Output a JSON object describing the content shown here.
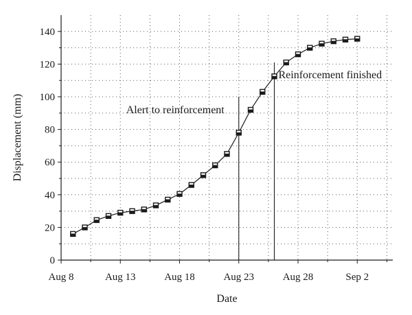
{
  "chart_data": {
    "type": "line",
    "title": "",
    "xlabel": "Date",
    "ylabel": "Displacement (mm)",
    "x_ticks": [
      {
        "day": 0,
        "label": "Aug 8"
      },
      {
        "day": 5,
        "label": "Aug 13"
      },
      {
        "day": 10,
        "label": "Aug 18"
      },
      {
        "day": 15,
        "label": "Aug 23"
      },
      {
        "day": 20,
        "label": "Aug 28"
      },
      {
        "day": 25,
        "label": "Sep 2"
      }
    ],
    "y_ticks": [
      0,
      20,
      40,
      60,
      80,
      100,
      120,
      140
    ],
    "xlim": [
      0,
      28
    ],
    "ylim": [
      0,
      150
    ],
    "grid": true,
    "x": [
      1,
      2,
      3,
      4,
      5,
      6,
      7,
      8,
      9,
      10,
      11,
      12,
      13,
      14,
      15,
      16,
      17,
      18,
      19,
      20,
      21,
      22,
      23,
      24,
      25
    ],
    "values": [
      16,
      20,
      24.5,
      27,
      29,
      30,
      31,
      33.5,
      37,
      40.5,
      46,
      52,
      58,
      65,
      78,
      92,
      103,
      112.5,
      121,
      126,
      130,
      132.5,
      134,
      135,
      135.5
    ],
    "annotations": [
      {
        "text": "Alert to reinforcement",
        "x": 15,
        "y_top": 100
      },
      {
        "text": "Reinforcement finished",
        "x": 18,
        "y_top": 121
      }
    ]
  }
}
